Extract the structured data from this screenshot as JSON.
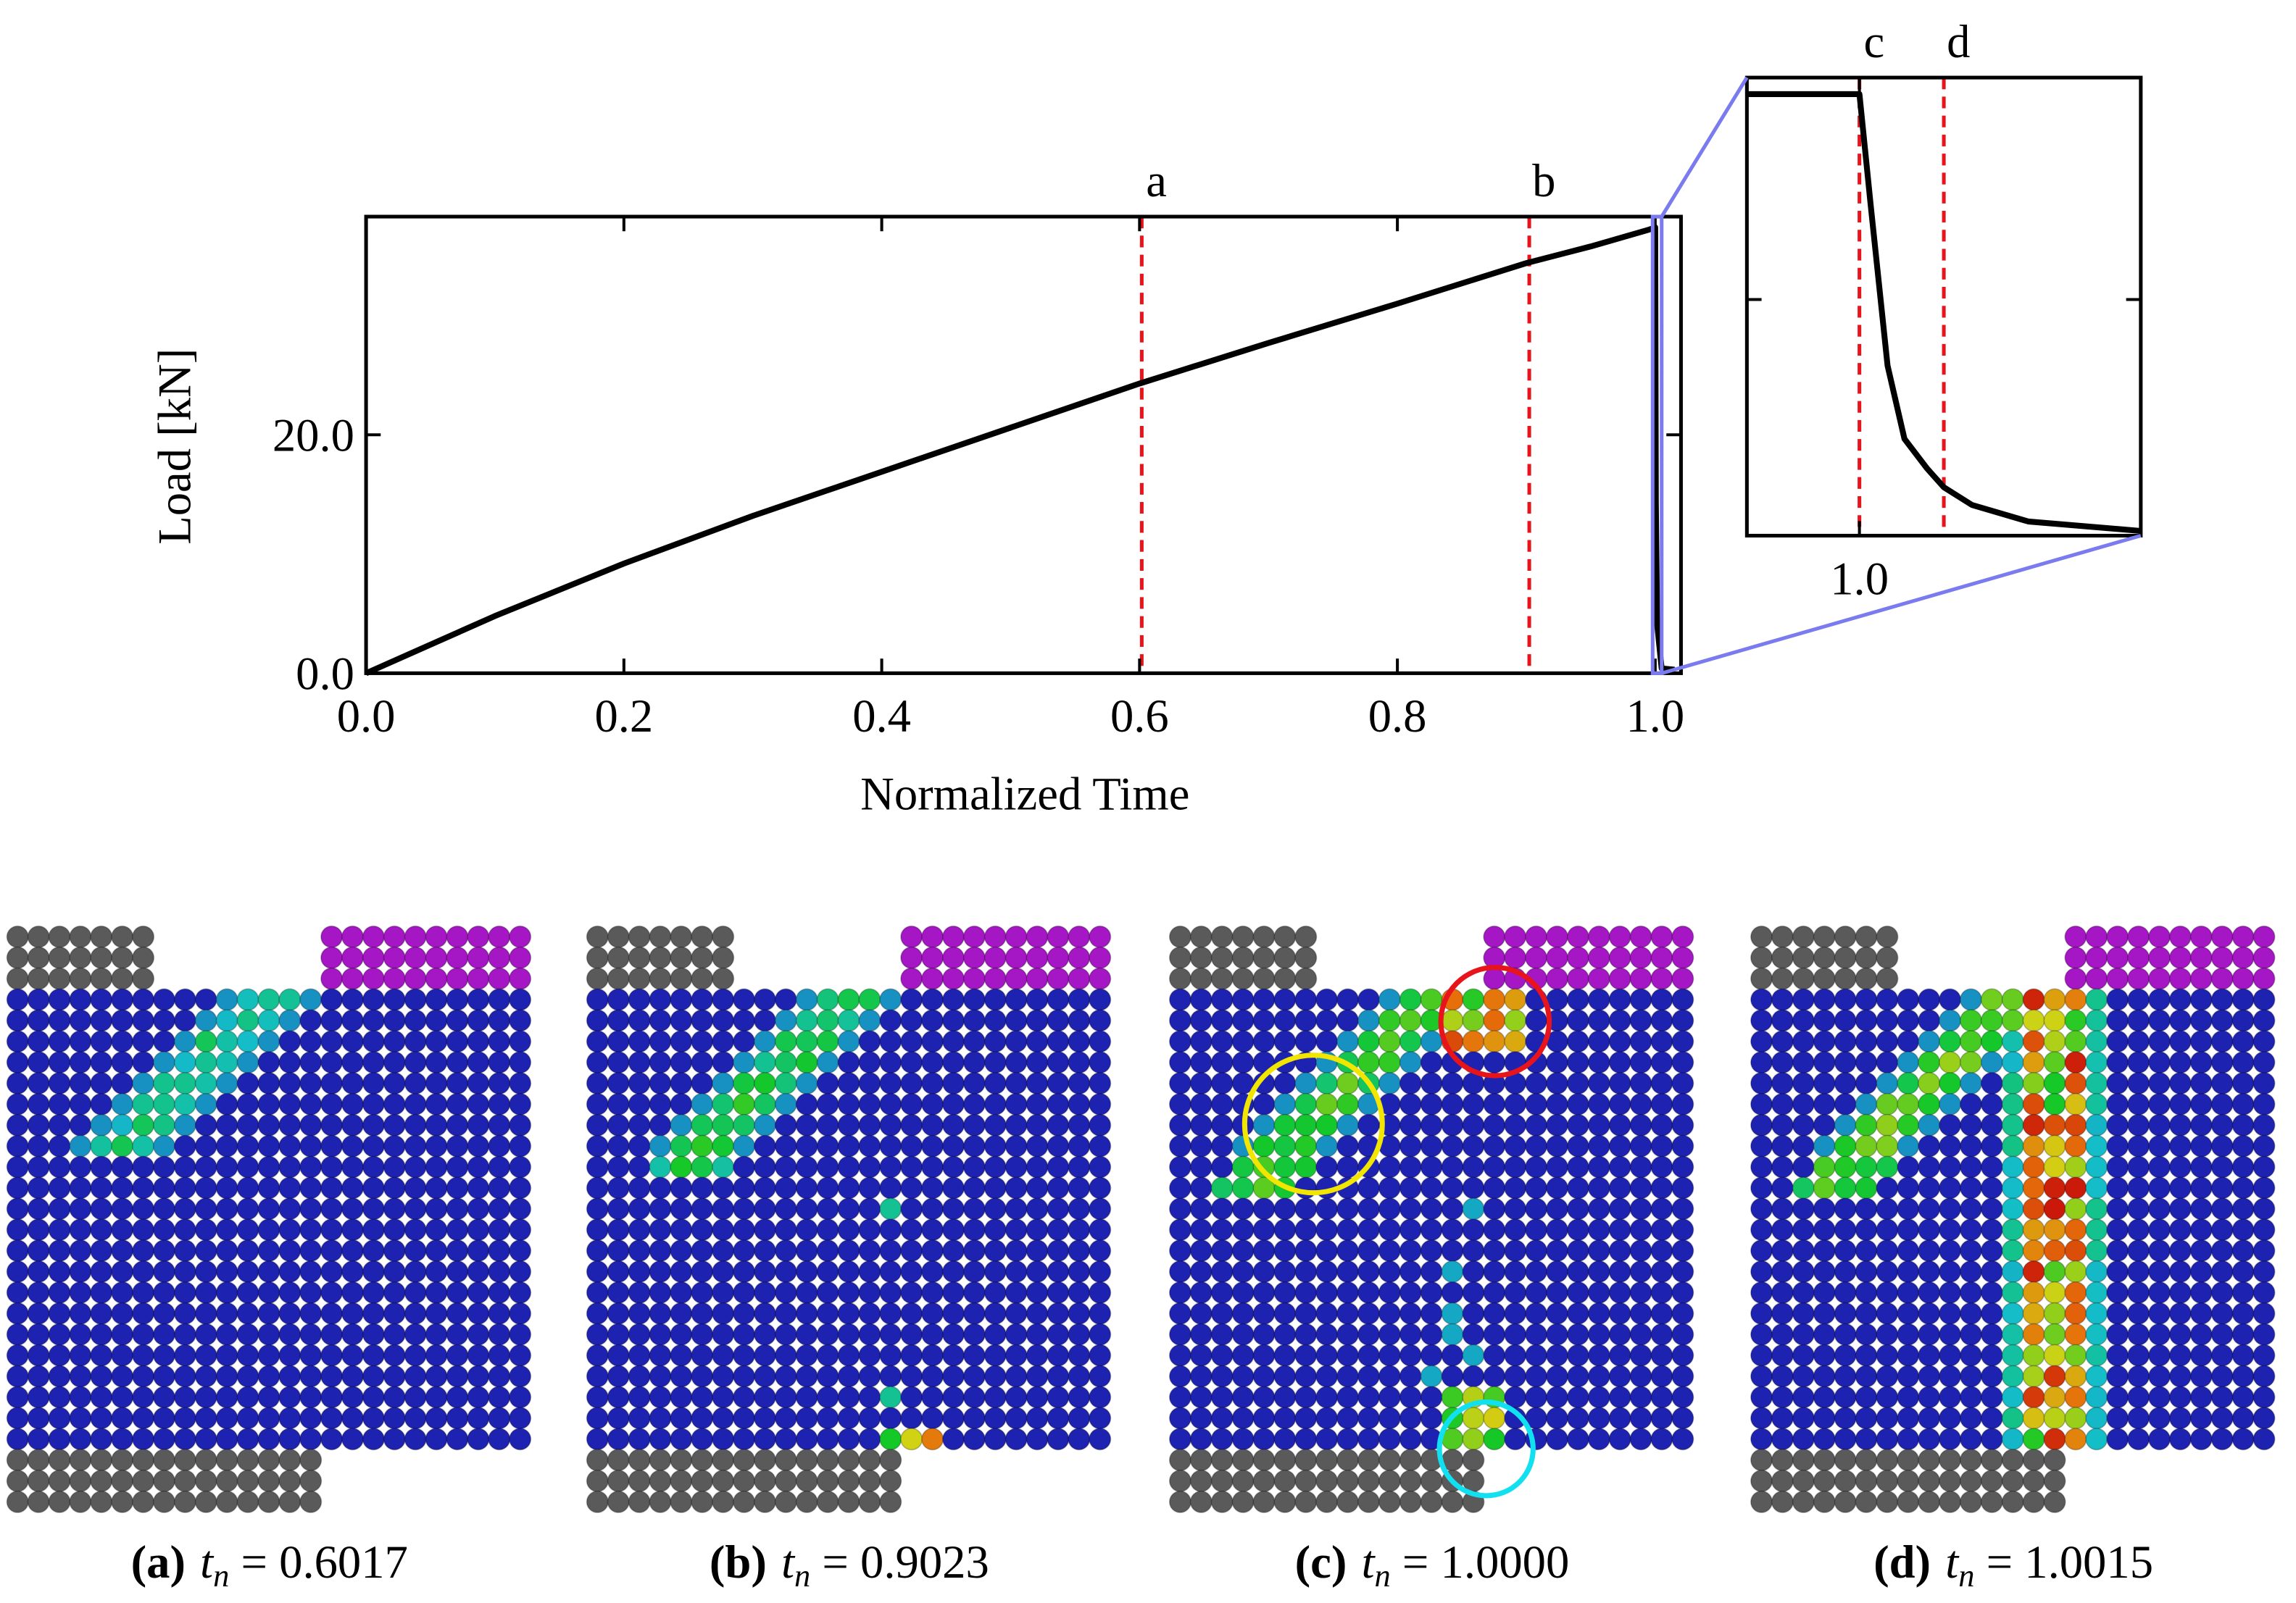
{
  "chart_data": [
    {
      "type": "line",
      "xlabel": "Normalized Time",
      "ylabel": "Load [kN]",
      "xlim": [
        0,
        1.02
      ],
      "ylim": [
        0,
        38.3
      ],
      "xticks": [
        {
          "value": 0,
          "label": "0.0"
        },
        0.2,
        0.4,
        0.6,
        0.8,
        {
          "value": 1,
          "label": "1.0"
        }
      ],
      "yticks": [
        {
          "value": 0,
          "label": "0.0"
        },
        {
          "value": 20,
          "label": "20.0"
        }
      ],
      "series": [
        {
          "color": "#000000",
          "x": [
            0,
            0.1,
            0.2,
            0.3,
            0.4,
            0.5,
            0.6,
            0.7,
            0.8,
            0.9,
            0.95,
            0.995,
            1.0,
            1.0002,
            1.0005,
            1.0015,
            1.005,
            1.015
          ],
          "values": [
            0,
            4.8,
            9.2,
            13.2,
            16.9,
            20.6,
            24.3,
            27.7,
            31.0,
            34.4,
            35.8,
            37.2,
            37.4,
            28,
            14.4,
            4.1,
            0.4,
            0.3
          ]
        }
      ],
      "markers": [
        {
          "label": "a",
          "x": 0.6017,
          "color": "#e8141c"
        },
        {
          "label": "b",
          "x": 0.9023,
          "color": "#e8141c"
        }
      ],
      "zoom_color": "#7b7bf0"
    },
    {
      "type": "line",
      "xlim": [
        0.998,
        1.005
      ],
      "ylim": [
        0,
        38.8
      ],
      "xticks": [
        {
          "value": 1,
          "label": "1.0"
        }
      ],
      "yticks": [
        20
      ],
      "series": [
        {
          "color": "#000000",
          "x": [
            0.998,
            1.0,
            1.0002,
            1.0005,
            1.0008,
            1.0012,
            1.0015,
            1.002,
            1.003,
            1.005
          ],
          "values": [
            37.4,
            37.4,
            28,
            14.4,
            8.2,
            5.7,
            4.1,
            2.6,
            1.2,
            0.4
          ]
        }
      ],
      "markers": [
        {
          "label": "c",
          "x": 1.0,
          "color": "#e8141c"
        },
        {
          "label": "d",
          "x": 1.0015,
          "color": "#e8141c"
        }
      ]
    }
  ],
  "panels": {
    "variable": "t",
    "subscript": "n",
    "items": [
      {
        "tag": "(a)",
        "text": "= 0.6017"
      },
      {
        "tag": "(b)",
        "text": "= 0.9023"
      },
      {
        "tag": "(c)",
        "text": "= 1.0000"
      },
      {
        "tag": "(d)",
        "text": "= 1.0015"
      }
    ]
  }
}
